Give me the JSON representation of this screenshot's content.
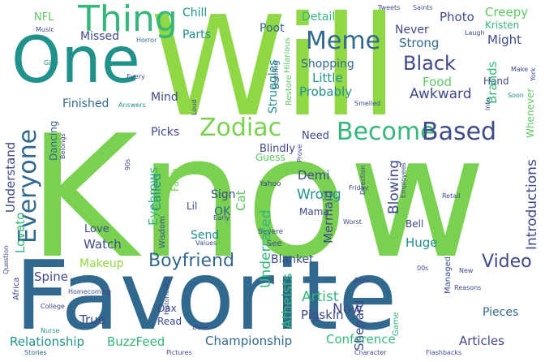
{
  "words": [
    {
      "text": "Know",
      "color": "#7ad151"
    },
    {
      "text": "Will",
      "color": "#8fd744"
    },
    {
      "text": "Favorite",
      "color": "#31688e"
    },
    {
      "text": "One",
      "color": "#21918c"
    },
    {
      "text": "Thing",
      "color": "#35b779"
    },
    {
      "text": "Meme",
      "color": "#31688e"
    },
    {
      "text": "Zodiac",
      "color": "#7ad151"
    },
    {
      "text": "Become",
      "color": "#35b779"
    },
    {
      "text": "Based",
      "color": "#3e4a89"
    },
    {
      "text": "Everyone",
      "color": "#31688e"
    },
    {
      "text": "Black",
      "color": "#3e4a89"
    },
    {
      "text": "Boyfriend",
      "color": "#31688e"
    },
    {
      "text": "Video",
      "color": "#3e4a89"
    },
    {
      "text": "Relationship",
      "color": "#21918c"
    },
    {
      "text": "BuzzFeed",
      "color": "#35b779"
    },
    {
      "text": "Championship",
      "color": "#31688e"
    },
    {
      "text": "Conference",
      "color": "#35b779"
    },
    {
      "text": "Articles",
      "color": "#3e4a89"
    },
    {
      "text": "Pigskin",
      "color": "#3e4a89"
    },
    {
      "text": "Artist",
      "color": "#35b779"
    },
    {
      "text": "Chill",
      "color": "#21918c"
    },
    {
      "text": "Poot",
      "color": "#31688e"
    },
    {
      "text": "Photo",
      "color": "#3e4a89"
    },
    {
      "text": "Creepy",
      "color": "#5ec962"
    },
    {
      "text": "Detail",
      "color": "#35b779"
    },
    {
      "text": "Never",
      "color": "#3e4a89"
    },
    {
      "text": "Kristen",
      "color": "#35b779"
    },
    {
      "text": "Strong",
      "color": "#31688e"
    },
    {
      "text": "Might",
      "color": "#3e4a89"
    },
    {
      "text": "Missed",
      "color": "#3e4a89"
    },
    {
      "text": "Parts",
      "color": "#21918c"
    },
    {
      "text": "Shopping",
      "color": "#31688e"
    },
    {
      "text": "Little",
      "color": "#21918c"
    },
    {
      "text": "Food",
      "color": "#5ec962"
    },
    {
      "text": "Hand",
      "color": "#3e4a89"
    },
    {
      "text": "Probably",
      "color": "#21918c"
    },
    {
      "text": "Awkward",
      "color": "#3e4a89"
    },
    {
      "text": "Finished",
      "color": "#31688e"
    },
    {
      "text": "Mind",
      "color": "#3e4a89"
    },
    {
      "text": "Picks",
      "color": "#3e4a89"
    },
    {
      "text": "Need",
      "color": "#3e4a89"
    },
    {
      "text": "Blindly",
      "color": "#3e4a89"
    },
    {
      "text": "Guess",
      "color": "#5ec962"
    },
    {
      "text": "Demi",
      "color": "#3e4a89"
    },
    {
      "text": "Wrong",
      "color": "#21918c"
    },
    {
      "text": "Sign",
      "color": "#3e4a89"
    },
    {
      "text": "OK",
      "color": "#31688e"
    },
    {
      "text": "Lil",
      "color": "#3e4a89"
    },
    {
      "text": "Mama",
      "color": "#3e4a89"
    },
    {
      "text": "Lovato",
      "color": "#35b779"
    },
    {
      "text": "Love",
      "color": "#3e4a89"
    },
    {
      "text": "Watch",
      "color": "#3e4a89"
    },
    {
      "text": "Makeup",
      "color": "#8fd744"
    },
    {
      "text": "Send",
      "color": "#21918c"
    },
    {
      "text": "Blanket",
      "color": "#3e4a89"
    },
    {
      "text": "Huge",
      "color": "#21918c"
    },
    {
      "text": "Bell",
      "color": "#3e4a89"
    },
    {
      "text": "Spine",
      "color": "#3e4a89"
    },
    {
      "text": "True",
      "color": "#3e4a89"
    },
    {
      "text": "Now",
      "color": "#3e4a89"
    },
    {
      "text": "Pieces",
      "color": "#31688e"
    },
    {
      "text": "Read",
      "color": "#3e4a89"
    },
    {
      "text": "Dax",
      "color": "#3e4a89"
    },
    {
      "text": "Shepard",
      "color": "#3e4a89"
    },
    {
      "text": "NFL",
      "color": "#5ec962"
    },
    {
      "text": "Underrated",
      "color": "#35b779"
    },
    {
      "text": "Atheists",
      "color": "#35b779"
    },
    {
      "text": "Mermaid",
      "color": "#3e4a89"
    },
    {
      "text": "Blowing",
      "color": "#3e4a89"
    },
    {
      "text": "Introductions",
      "color": "#3e4a89"
    },
    {
      "text": "Whenever",
      "color": "#5ec962"
    },
    {
      "text": "Brands",
      "color": "#35b779"
    },
    {
      "text": "Struggles",
      "color": "#21918c"
    },
    {
      "text": "Restore",
      "color": "#5ec962"
    },
    {
      "text": "Feeling",
      "color": "#31688e"
    },
    {
      "text": "Hilarious",
      "color": "#5ec962"
    },
    {
      "text": "Understand",
      "color": "#3e4a89"
    },
    {
      "text": "Dancing",
      "color": "#31688e"
    },
    {
      "text": "Eyebrows",
      "color": "#35b779"
    },
    {
      "text": "Called",
      "color": "#21918c"
    },
    {
      "text": "Cat",
      "color": "#5ec962"
    },
    {
      "text": "Faith",
      "color": "#7ad151"
    },
    {
      "text": "Wisdom",
      "color": "#3e4a89"
    },
    {
      "text": "Managed",
      "color": "#3e4a89"
    },
    {
      "text": "Africa",
      "color": "#3e4a89"
    },
    {
      "text": "Tweets",
      "color": "#3e4a89"
    },
    {
      "text": "Saints",
      "color": "#3e4a89"
    },
    {
      "text": "Music",
      "color": "#3e4a89"
    },
    {
      "text": "Horror",
      "color": "#31688e"
    },
    {
      "text": "Give",
      "color": "#21918c"
    },
    {
      "text": "Every",
      "color": "#3e4a89"
    },
    {
      "text": "Answers",
      "color": "#21918c"
    },
    {
      "text": "Smelled",
      "color": "#3e4a89"
    },
    {
      "text": "Laugh",
      "color": "#3e4a89"
    },
    {
      "text": "Make",
      "color": "#3e4a89"
    },
    {
      "text": "Soon",
      "color": "#21918c"
    },
    {
      "text": "Belongs",
      "color": "#3e4a89"
    },
    {
      "text": "Prove",
      "color": "#3e4a89"
    },
    {
      "text": "Yahoo",
      "color": "#3e4a89"
    },
    {
      "text": "Friday",
      "color": "#3e4a89"
    },
    {
      "text": "Direction",
      "color": "#3e4a89"
    },
    {
      "text": "Employees",
      "color": "#3e4a89"
    },
    {
      "text": "Retail",
      "color": "#3e4a89"
    },
    {
      "text": "Early",
      "color": "#3e4a89"
    },
    {
      "text": "Worst",
      "color": "#3e4a89"
    },
    {
      "text": "Severe",
      "color": "#3e4a89"
    },
    {
      "text": "Values",
      "color": "#3e4a89"
    },
    {
      "text": "See",
      "color": "#3e4a89"
    },
    {
      "text": "Historically",
      "color": "#3e4a89"
    },
    {
      "text": "Question",
      "color": "#3e4a89"
    },
    {
      "text": "Homecoming",
      "color": "#3e4a89"
    },
    {
      "text": "College",
      "color": "#3e4a89"
    },
    {
      "text": "Nurse",
      "color": "#21918c"
    },
    {
      "text": "Stories",
      "color": "#31688e"
    },
    {
      "text": "Pictures",
      "color": "#3e4a89"
    },
    {
      "text": "Date",
      "color": "#3e4a89"
    },
    {
      "text": "Character",
      "color": "#3e4a89"
    },
    {
      "text": "Flashbacks",
      "color": "#3e4a89"
    },
    {
      "text": "Reasons",
      "color": "#3e4a89"
    },
    {
      "text": "New",
      "color": "#3e4a89"
    },
    {
      "text": "Best",
      "color": "#3e4a89"
    },
    {
      "text": "Game",
      "color": "#35b779"
    },
    {
      "text": "90s",
      "color": "#3e4a89"
    },
    {
      "text": "00s",
      "color": "#3e4a89"
    },
    {
      "text": "York",
      "color": "#3e4a89"
    },
    {
      "text": "Into",
      "color": "#3e4a89"
    },
    {
      "text": "Loud",
      "color": "#3e4a89"
    }
  ]
}
